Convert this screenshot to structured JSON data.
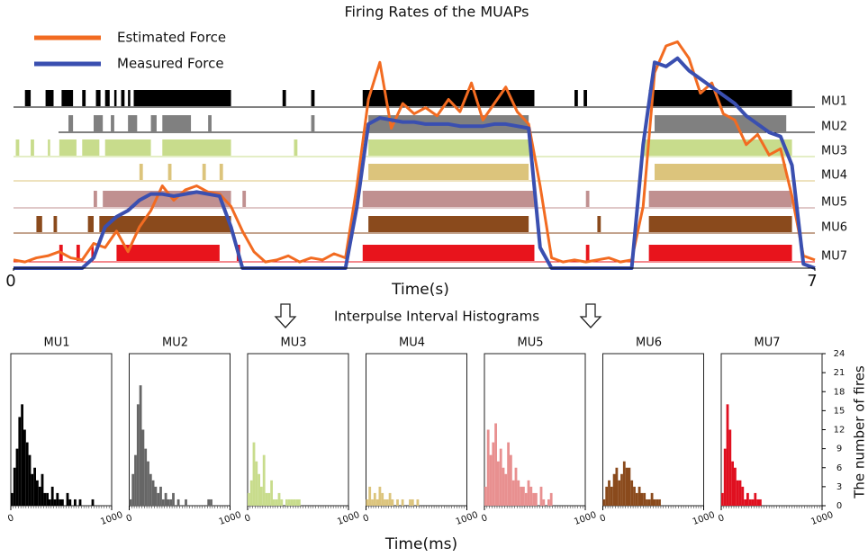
{
  "chart_data": [
    {
      "type": "raster",
      "title": "Firing Rates of the MUAPs",
      "xlabel": "Time(s)",
      "xlim": [
        0,
        7
      ],
      "xticks": [
        0,
        7
      ],
      "ylim": [
        0,
        1.15
      ],
      "legend": "upper left",
      "lines": [
        {
          "name": "Estimated Force",
          "color": "#f26b21",
          "values": [
            0.04,
            0.03,
            0.05,
            0.06,
            0.08,
            0.05,
            0.04,
            0.12,
            0.1,
            0.18,
            0.08,
            0.2,
            0.28,
            0.4,
            0.33,
            0.38,
            0.4,
            0.37,
            0.36,
            0.3,
            0.18,
            0.08,
            0.03,
            0.04,
            0.06,
            0.03,
            0.05,
            0.04,
            0.07,
            0.05,
            0.4,
            0.82,
            1.0,
            0.68,
            0.8,
            0.75,
            0.78,
            0.74,
            0.82,
            0.76,
            0.9,
            0.72,
            0.8,
            0.88,
            0.76,
            0.7,
            0.4,
            0.05,
            0.03,
            0.04,
            0.03,
            0.04,
            0.05,
            0.03,
            0.04,
            0.3,
            0.95,
            1.08,
            1.1,
            1.02,
            0.85,
            0.9,
            0.75,
            0.72,
            0.6,
            0.65,
            0.55,
            0.58,
            0.35,
            0.06,
            0.04
          ]
        },
        {
          "name": "Measured Force",
          "color": "#3a4fb0",
          "values": [
            0,
            0,
            0,
            0,
            0,
            0,
            0,
            0.05,
            0.2,
            0.25,
            0.28,
            0.33,
            0.36,
            0.36,
            0.35,
            0.36,
            0.37,
            0.36,
            0.35,
            0.2,
            0,
            0,
            0,
            0,
            0,
            0,
            0,
            0,
            0,
            0,
            0.3,
            0.7,
            0.73,
            0.72,
            0.71,
            0.71,
            0.7,
            0.7,
            0.7,
            0.69,
            0.69,
            0.69,
            0.7,
            0.7,
            0.69,
            0.68,
            0.1,
            0,
            0,
            0,
            0,
            0,
            0,
            0,
            0,
            0.6,
            1.0,
            0.98,
            1.02,
            0.96,
            0.92,
            0.88,
            0.84,
            0.8,
            0.74,
            0.7,
            0.66,
            0.64,
            0.5,
            0.02,
            0
          ]
        }
      ],
      "x": [
        0,
        0.1,
        0.2,
        0.3,
        0.4,
        0.5,
        0.6,
        0.7,
        0.8,
        0.9,
        1.0,
        1.1,
        1.2,
        1.3,
        1.4,
        1.5,
        1.6,
        1.7,
        1.8,
        1.9,
        2.0,
        2.1,
        2.2,
        2.3,
        2.4,
        2.5,
        2.6,
        2.7,
        2.8,
        2.9,
        3.0,
        3.1,
        3.2,
        3.3,
        3.4,
        3.5,
        3.6,
        3.7,
        3.8,
        3.9,
        4.0,
        4.1,
        4.2,
        4.3,
        4.4,
        4.5,
        4.6,
        4.7,
        4.8,
        4.9,
        5.0,
        5.1,
        5.2,
        5.3,
        5.4,
        5.5,
        5.6,
        5.7,
        5.8,
        5.9,
        6.0,
        6.1,
        6.2,
        6.3,
        6.4,
        6.5,
        6.6,
        6.7,
        6.8,
        6.9,
        7.0
      ],
      "series": [
        {
          "name": "MU1",
          "color": "#000000",
          "intervals": [
            [
              0.1,
              0.15
            ],
            [
              0.28,
              0.35
            ],
            [
              0.42,
              0.52
            ],
            [
              0.6,
              0.63
            ],
            [
              0.72,
              0.76
            ],
            [
              0.8,
              0.84
            ],
            [
              0.88,
              0.9
            ],
            [
              0.94,
              0.97
            ],
            [
              1.0,
              1.02
            ],
            [
              1.05,
              1.9
            ],
            [
              2.35,
              2.38
            ],
            [
              2.6,
              2.63
            ],
            [
              3.05,
              4.55
            ],
            [
              4.9,
              4.93
            ],
            [
              4.98,
              5.01
            ],
            [
              5.55,
              6.8
            ]
          ]
        },
        {
          "name": "MU2",
          "color": "#808080",
          "intervals": [
            [
              0.48,
              0.52
            ],
            [
              0.7,
              0.78
            ],
            [
              0.85,
              0.88
            ],
            [
              1.0,
              1.08
            ],
            [
              1.2,
              1.25
            ],
            [
              1.3,
              1.55
            ],
            [
              1.7,
              1.73
            ],
            [
              2.6,
              2.63
            ],
            [
              3.1,
              4.5
            ],
            [
              5.6,
              6.75
            ]
          ]
        },
        {
          "name": "MU3",
          "color": "#c8dc8c",
          "intervals": [
            [
              0.02,
              0.05
            ],
            [
              0.15,
              0.18
            ],
            [
              0.3,
              0.32
            ],
            [
              0.4,
              0.55
            ],
            [
              0.6,
              0.75
            ],
            [
              0.8,
              1.2
            ],
            [
              1.3,
              1.9
            ],
            [
              2.45,
              2.48
            ],
            [
              3.1,
              4.52
            ],
            [
              5.5,
              6.8
            ]
          ]
        },
        {
          "name": "MU4",
          "color": "#dcc47c",
          "intervals": [
            [
              1.1,
              1.13
            ],
            [
              1.35,
              1.38
            ],
            [
              1.65,
              1.68
            ],
            [
              1.8,
              1.83
            ],
            [
              3.1,
              4.5
            ],
            [
              5.6,
              6.75
            ]
          ]
        },
        {
          "name": "MU5",
          "color": "#c09090",
          "intervals": [
            [
              0.7,
              0.73
            ],
            [
              0.78,
              1.9
            ],
            [
              2.0,
              2.03
            ],
            [
              3.05,
              4.55
            ],
            [
              5.0,
              5.03
            ],
            [
              5.55,
              6.8
            ]
          ]
        },
        {
          "name": "MU6",
          "color": "#8a4a1c",
          "intervals": [
            [
              0.2,
              0.25
            ],
            [
              0.35,
              0.38
            ],
            [
              0.65,
              0.7
            ],
            [
              0.75,
              1.9
            ],
            [
              3.1,
              4.5
            ],
            [
              5.1,
              5.13
            ],
            [
              5.55,
              6.8
            ]
          ]
        },
        {
          "name": "MU7",
          "color": "#e8141c",
          "intervals": [
            [
              0.4,
              0.43
            ],
            [
              0.55,
              0.58
            ],
            [
              0.68,
              0.7
            ],
            [
              0.9,
              1.8
            ],
            [
              1.95,
              1.98
            ],
            [
              3.05,
              4.55
            ],
            [
              5.0,
              5.03
            ],
            [
              5.55,
              6.8
            ]
          ]
        }
      ]
    },
    {
      "type": "histogram",
      "title": "Interpulse Interval Histograms",
      "xlabel": "Time(ms)",
      "ylabel": "The number of fires",
      "xlim": [
        0,
        1000
      ],
      "xticks": [
        0,
        1000
      ],
      "ylim": [
        0,
        24
      ],
      "yticks": [
        0,
        3,
        6,
        9,
        12,
        15,
        18,
        21,
        24
      ],
      "bins": [
        0,
        25,
        50,
        75,
        100,
        125,
        150,
        175,
        200,
        225,
        250,
        275,
        300,
        325,
        350,
        375,
        400,
        425,
        450,
        475,
        500,
        525,
        550,
        575,
        600,
        625,
        650,
        675,
        700,
        725,
        750,
        775,
        800,
        825,
        850,
        875,
        900,
        925,
        950,
        975,
        1000
      ],
      "series": [
        {
          "name": "MU1",
          "color": "#000000",
          "values": [
            2,
            6,
            9,
            14,
            16,
            12,
            10,
            8,
            5,
            6,
            4,
            3,
            5,
            2,
            2,
            1,
            3,
            1,
            2,
            1,
            1,
            0,
            2,
            1,
            0,
            1,
            0,
            1,
            0,
            0,
            0,
            0,
            1,
            0,
            0,
            0,
            0,
            0,
            0,
            0
          ]
        },
        {
          "name": "MU2",
          "color": "#666666",
          "values": [
            1,
            5,
            8,
            16,
            19,
            12,
            9,
            7,
            5,
            4,
            3,
            2,
            3,
            1,
            2,
            1,
            1,
            2,
            0,
            1,
            0,
            0,
            1,
            0,
            0,
            0,
            0,
            0,
            0,
            0,
            0,
            1,
            1,
            0,
            0,
            0,
            0,
            0,
            0,
            0
          ]
        },
        {
          "name": "MU3",
          "color": "#c8dc8c",
          "values": [
            2,
            4,
            10,
            7,
            5,
            3,
            8,
            2,
            2,
            4,
            1,
            1,
            2,
            1,
            0,
            1,
            1,
            1,
            1,
            1,
            1,
            0,
            0,
            0,
            0,
            0,
            0,
            0,
            0,
            0,
            0,
            0,
            0,
            0,
            0,
            0,
            0,
            0,
            0,
            0
          ]
        },
        {
          "name": "MU4",
          "color": "#dcc47c",
          "values": [
            1,
            3,
            1,
            2,
            1,
            3,
            2,
            1,
            1,
            2,
            1,
            0,
            1,
            0,
            1,
            0,
            0,
            1,
            1,
            0,
            1,
            0,
            0,
            0,
            0,
            0,
            0,
            0,
            0,
            0,
            0,
            0,
            0,
            0,
            0,
            0,
            0,
            0,
            0,
            0
          ]
        },
        {
          "name": "MU5",
          "color": "#e89090",
          "values": [
            3,
            12,
            8,
            10,
            13,
            7,
            9,
            6,
            5,
            10,
            8,
            4,
            6,
            4,
            3,
            3,
            2,
            4,
            3,
            2,
            2,
            0,
            3,
            1,
            0,
            1,
            2,
            0,
            0,
            0,
            0,
            0,
            0,
            0,
            0,
            0,
            0,
            0,
            0,
            0
          ]
        },
        {
          "name": "MU6",
          "color": "#8a4a1c",
          "values": [
            1,
            3,
            4,
            3,
            5,
            6,
            4,
            5,
            7,
            6,
            6,
            4,
            3,
            2,
            3,
            2,
            2,
            1,
            1,
            2,
            1,
            1,
            1,
            0,
            0,
            0,
            0,
            0,
            0,
            0,
            0,
            0,
            0,
            0,
            0,
            0,
            0,
            0,
            0,
            0
          ]
        },
        {
          "name": "MU7",
          "color": "#e01020",
          "values": [
            2,
            9,
            16,
            12,
            7,
            6,
            4,
            4,
            3,
            1,
            2,
            1,
            1,
            2,
            1,
            1,
            0,
            0,
            0,
            0,
            0,
            0,
            0,
            0,
            0,
            0,
            0,
            0,
            0,
            0,
            0,
            0,
            0,
            0,
            0,
            0,
            0,
            0,
            0,
            0
          ]
        }
      ]
    }
  ]
}
